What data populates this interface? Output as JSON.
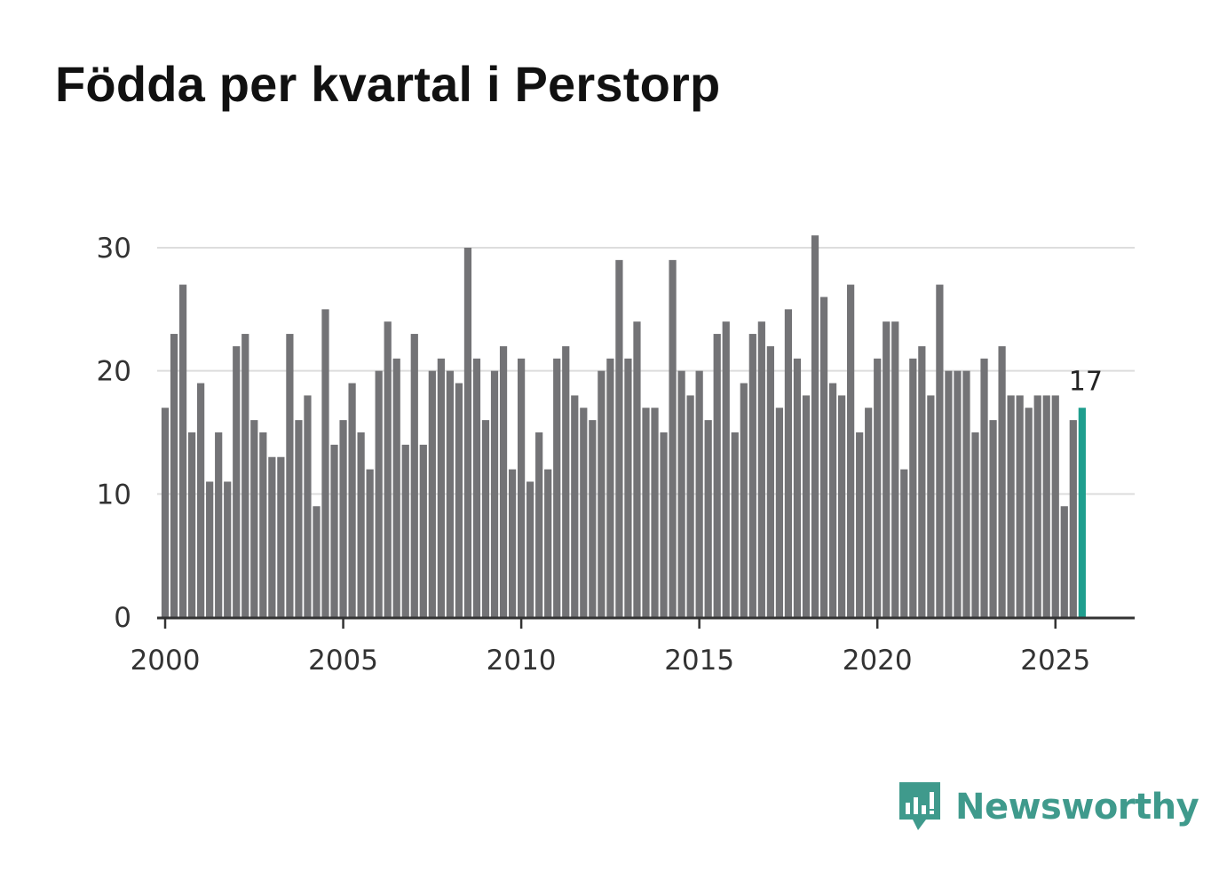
{
  "title": "Födda per kvartal i Perstorp",
  "brand": {
    "name": "Newsworthy",
    "color": "#3f9a8c",
    "icon": "newsworthy-logo-icon"
  },
  "colors": {
    "bar": "#737376",
    "highlight": "#1f9e8e",
    "grid": "#dddddd",
    "axis": "#333333"
  },
  "chart_data": {
    "type": "bar",
    "title": "Födda per kvartal i Perstorp",
    "xlabel": "",
    "ylabel": "",
    "x_start_year": 2000,
    "periods_per_year": 4,
    "values": [
      17,
      23,
      27,
      15,
      19,
      11,
      15,
      11,
      22,
      23,
      16,
      15,
      13,
      13,
      23,
      16,
      18,
      9,
      25,
      14,
      16,
      19,
      15,
      12,
      20,
      24,
      21,
      14,
      23,
      14,
      20,
      21,
      20,
      19,
      30,
      21,
      16,
      20,
      22,
      12,
      21,
      11,
      15,
      12,
      21,
      22,
      18,
      17,
      16,
      20,
      21,
      29,
      21,
      24,
      17,
      17,
      15,
      29,
      20,
      18,
      20,
      16,
      23,
      24,
      15,
      19,
      23,
      24,
      22,
      17,
      25,
      21,
      18,
      31,
      26,
      19,
      18,
      27,
      15,
      17,
      21,
      24,
      24,
      12,
      21,
      22,
      18,
      27,
      20,
      20,
      20,
      15,
      21,
      16,
      22,
      18,
      18,
      17,
      18,
      18,
      18,
      9,
      16,
      17
    ],
    "highlight_last": true,
    "last_value_label": "17",
    "ylim": [
      0,
      31
    ],
    "yticks": [
      0,
      10,
      20,
      30
    ],
    "xticks": [
      2000,
      2005,
      2010,
      2015,
      2020,
      2025
    ],
    "xlim": [
      1999.85,
      2027.3
    ],
    "grid": true
  }
}
